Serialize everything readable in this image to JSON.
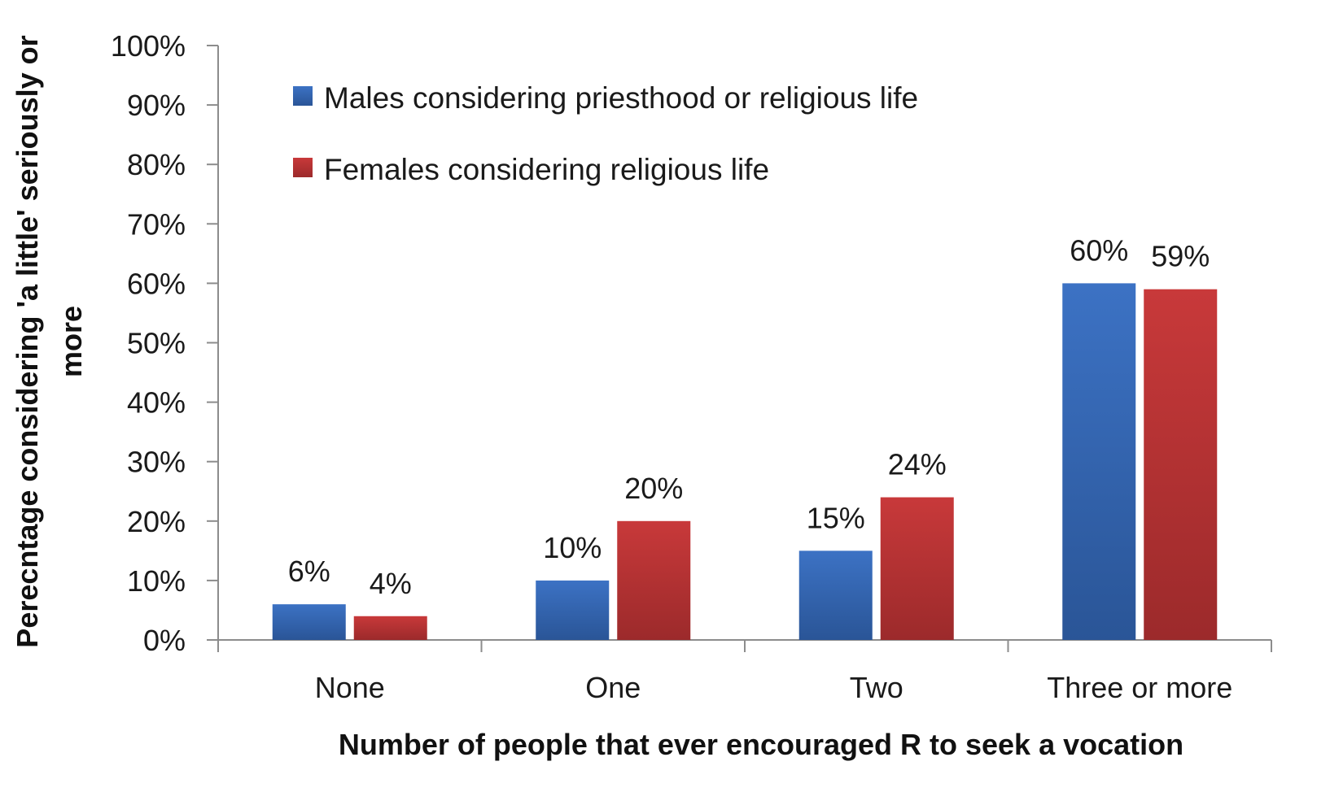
{
  "chart_data": {
    "type": "bar",
    "categories": [
      "None",
      "One",
      "Two",
      "Three or more"
    ],
    "series": [
      {
        "name": "Males considering priesthood or religious life",
        "values": [
          6,
          10,
          15,
          60
        ],
        "labels": [
          "6%",
          "10%",
          "15%",
          "60%"
        ],
        "color": "#3c72c4",
        "color_dark": "#2a5597"
      },
      {
        "name": "Females considering religious life",
        "values": [
          4,
          20,
          24,
          59
        ],
        "labels": [
          "4%",
          "20%",
          "24%",
          "59%"
        ],
        "color": "#c8393a",
        "color_dark": "#9c2a2b"
      }
    ],
    "ylim": [
      0,
      100
    ],
    "yticks": [
      0,
      10,
      20,
      30,
      40,
      50,
      60,
      70,
      80,
      90,
      100
    ],
    "ytick_labels": [
      "0%",
      "10%",
      "20%",
      "30%",
      "40%",
      "50%",
      "60%",
      "70%",
      "80%",
      "90%",
      "100%"
    ],
    "xlabel": "Number of people that ever encouraged R to seek a vocation",
    "ylabel_lines": [
      "Perecntage considering 'a little' seriously or",
      "more"
    ],
    "grid": false,
    "legend_position": "top-left",
    "axis_color": "#8c8c8c"
  }
}
